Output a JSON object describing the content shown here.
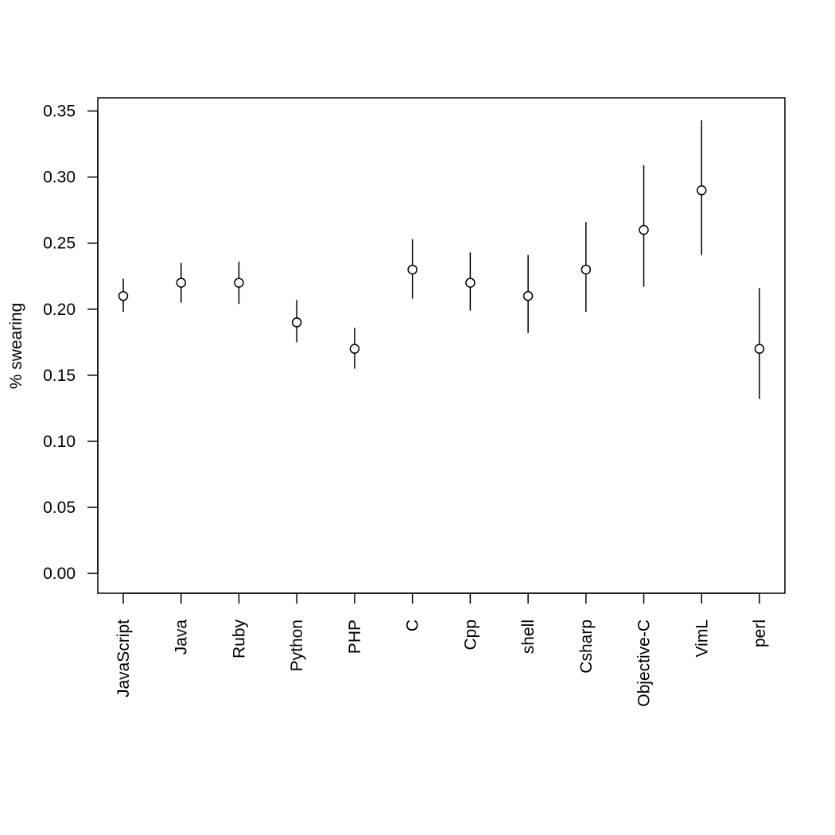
{
  "chart_data": {
    "type": "scatter",
    "title": "",
    "xlabel": "",
    "ylabel": "% swearing",
    "ylim": [
      -0.015,
      0.36
    ],
    "yticks": [
      "0.00",
      "0.05",
      "0.10",
      "0.15",
      "0.20",
      "0.25",
      "0.30",
      "0.35"
    ],
    "grid": false,
    "legend": "none",
    "marker": "open-circle",
    "error_bars": true,
    "categories": [
      "JavaScript",
      "Java",
      "Ruby",
      "Python",
      "PHP",
      "C",
      "Cpp",
      "shell",
      "Csharp",
      "Objective-C",
      "VimL",
      "perl"
    ],
    "values": [
      0.21,
      0.22,
      0.22,
      0.19,
      0.17,
      0.23,
      0.22,
      0.21,
      0.23,
      0.26,
      0.29,
      0.17
    ],
    "lower": [
      0.198,
      0.205,
      0.204,
      0.175,
      0.155,
      0.208,
      0.199,
      0.182,
      0.198,
      0.217,
      0.241,
      0.132
    ],
    "upper": [
      0.223,
      0.235,
      0.236,
      0.207,
      0.186,
      0.253,
      0.243,
      0.241,
      0.266,
      0.309,
      0.343,
      0.216
    ]
  }
}
